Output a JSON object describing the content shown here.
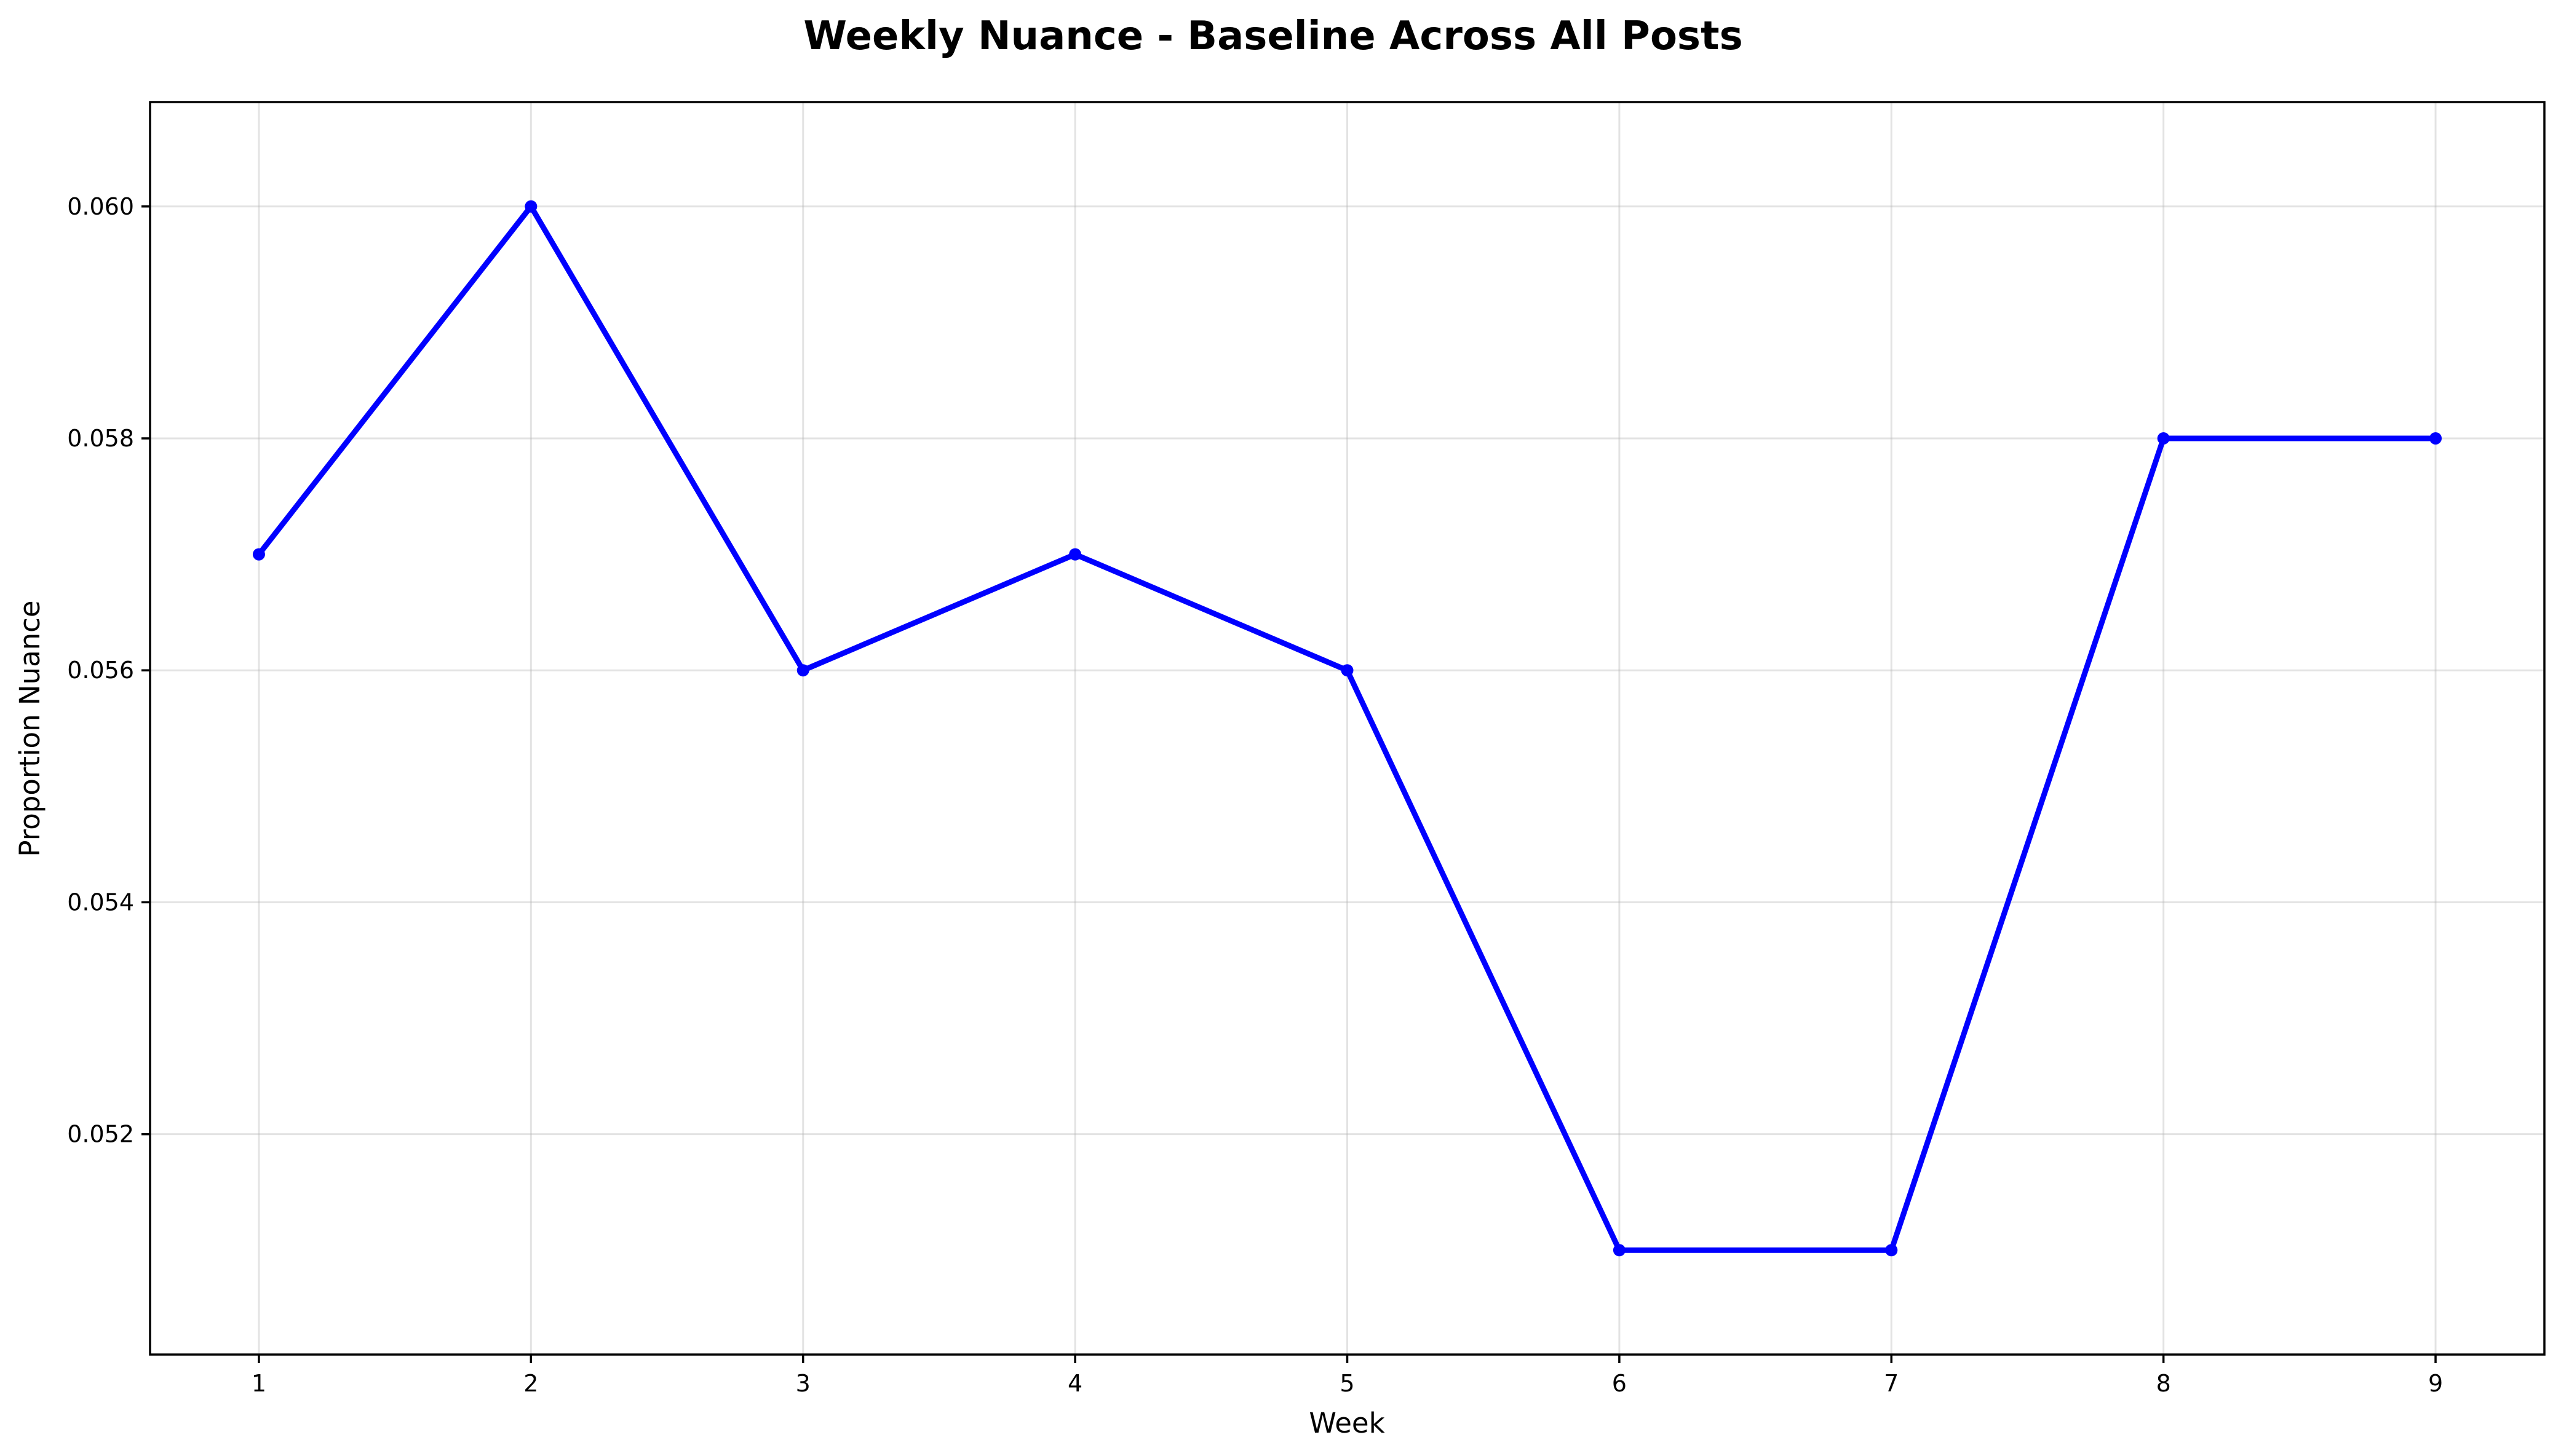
{
  "chart_data": {
    "type": "line",
    "title": "Weekly Nuance - Baseline Across All Posts",
    "xlabel": "Week",
    "ylabel": "Proportion Nuance",
    "x": [
      1,
      2,
      3,
      4,
      5,
      6,
      7,
      8,
      9
    ],
    "x_tick_labels": [
      "1",
      "2",
      "3",
      "4",
      "5",
      "6",
      "7",
      "8",
      "9"
    ],
    "y_ticks": [
      0.052,
      0.054,
      0.056,
      0.058,
      0.06
    ],
    "y_tick_labels": [
      "0.052",
      "0.054",
      "0.056",
      "0.058",
      "0.060"
    ],
    "xlim": [
      0.6,
      9.4
    ],
    "ylim": [
      0.0501,
      0.0609
    ],
    "grid": true,
    "series": [
      {
        "values": [
          0.057,
          0.06,
          0.056,
          0.057,
          0.056,
          0.051,
          0.051,
          0.058,
          0.058
        ],
        "color": "#0000ff",
        "marker": "circle"
      }
    ]
  }
}
